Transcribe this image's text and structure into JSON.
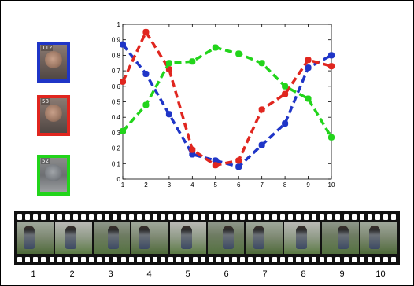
{
  "thumbnails": [
    {
      "id": "112",
      "border_color": "#1f35c7"
    },
    {
      "id": "58",
      "border_color": "#e0261f"
    },
    {
      "id": "52",
      "border_color": "#22d41b"
    }
  ],
  "chart_data": {
    "type": "line",
    "x": [
      1,
      2,
      3,
      4,
      5,
      6,
      7,
      8,
      9,
      10
    ],
    "xlim": [
      1,
      10
    ],
    "ylim": [
      0,
      1
    ],
    "xticks": [
      "1",
      "2",
      "3",
      "4",
      "5",
      "6",
      "7",
      "8",
      "9",
      "10"
    ],
    "yticks": [
      "0",
      "0.1",
      "0.2",
      "0.3",
      "0.4",
      "0.5",
      "0.6",
      "0.7",
      "0.8",
      "0.9",
      "1"
    ],
    "grid": false,
    "series": [
      {
        "color": "#1f35c7",
        "values": [
          0.87,
          0.68,
          0.42,
          0.16,
          0.12,
          0.08,
          0.22,
          0.36,
          0.72,
          0.8
        ]
      },
      {
        "color": "#e0261f",
        "values": [
          0.63,
          0.95,
          0.71,
          0.19,
          0.09,
          0.12,
          0.45,
          0.55,
          0.77,
          0.73
        ]
      },
      {
        "color": "#22d41b",
        "values": [
          0.31,
          0.48,
          0.75,
          0.76,
          0.85,
          0.81,
          0.75,
          0.6,
          0.52,
          0.27
        ]
      }
    ]
  },
  "filmstrip": {
    "frame_labels": [
      "1",
      "2",
      "3",
      "4",
      "5",
      "6",
      "7",
      "8",
      "9",
      "10"
    ]
  }
}
